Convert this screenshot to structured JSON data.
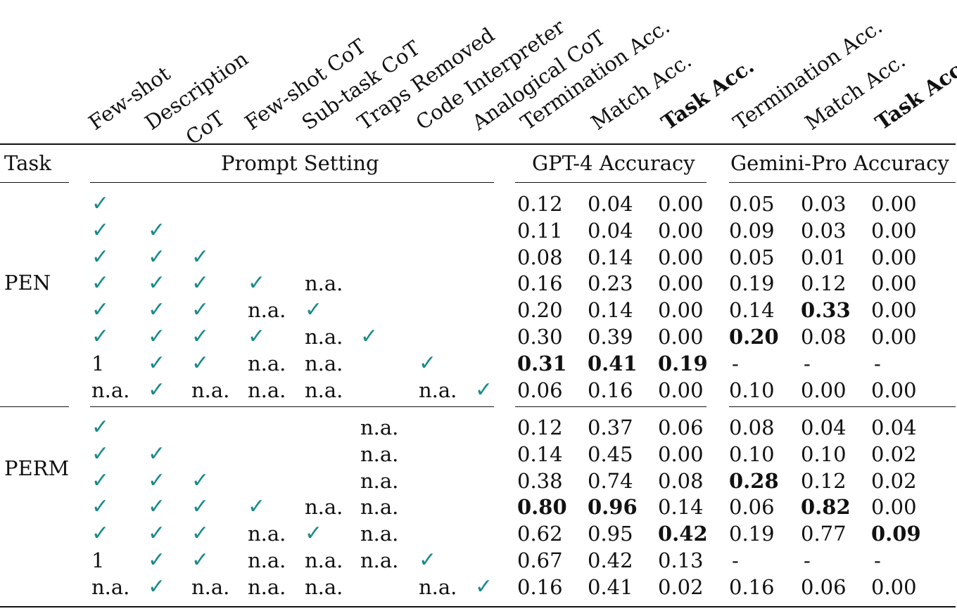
{
  "column_headers": {
    "prompt": [
      "Few-shot",
      "Description",
      "CoT",
      "Few-shot CoT",
      "Sub-task CoT",
      "Traps Removed",
      "Code Interpreter",
      "Analogical CoT"
    ],
    "gpt4": [
      "Termination Acc.",
      "Match Acc.",
      "Task Acc."
    ],
    "gemini": [
      "Termination Acc.",
      "Match Acc.",
      "Task Acc."
    ]
  },
  "group_headers": {
    "task": "Task",
    "prompt_setting": "Prompt Setting",
    "gpt4_accuracy": "GPT-4 Accuracy",
    "gemini_accuracy": "Gemini-Pro Accuracy"
  },
  "check_symbol": "✓",
  "colors": {
    "check": "#1a8a8a",
    "rule": "#111111"
  },
  "tasks": [
    {
      "name": "PEN",
      "rows": [
        {
          "prompt": [
            "✓",
            "",
            "",
            "",
            "",
            "",
            "",
            ""
          ],
          "gpt4": [
            "0.12",
            "0.04",
            "0.00"
          ],
          "gemini": [
            "0.05",
            "0.03",
            "0.00"
          ],
          "bold": []
        },
        {
          "prompt": [
            "✓",
            "✓",
            "",
            "",
            "",
            "",
            "",
            ""
          ],
          "gpt4": [
            "0.11",
            "0.04",
            "0.00"
          ],
          "gemini": [
            "0.09",
            "0.03",
            "0.00"
          ],
          "bold": []
        },
        {
          "prompt": [
            "✓",
            "✓",
            "✓",
            "",
            "",
            "",
            "",
            ""
          ],
          "gpt4": [
            "0.08",
            "0.14",
            "0.00"
          ],
          "gemini": [
            "0.05",
            "0.01",
            "0.00"
          ],
          "bold": []
        },
        {
          "prompt": [
            "✓",
            "✓",
            "✓",
            "✓",
            "n.a.",
            "",
            "",
            ""
          ],
          "gpt4": [
            "0.16",
            "0.23",
            "0.00"
          ],
          "gemini": [
            "0.19",
            "0.12",
            "0.00"
          ],
          "bold": []
        },
        {
          "prompt": [
            "✓",
            "✓",
            "✓",
            "n.a.",
            "✓",
            "",
            "",
            ""
          ],
          "gpt4": [
            "0.20",
            "0.14",
            "0.00"
          ],
          "gemini": [
            "0.14",
            "0.33",
            "0.00"
          ],
          "bold": [
            "gemini.1"
          ]
        },
        {
          "prompt": [
            "✓",
            "✓",
            "✓",
            "✓",
            "n.a.",
            "✓",
            "",
            ""
          ],
          "gpt4": [
            "0.30",
            "0.39",
            "0.00"
          ],
          "gemini": [
            "0.20",
            "0.08",
            "0.00"
          ],
          "bold": [
            "gemini.0"
          ]
        },
        {
          "prompt": [
            "1",
            "✓",
            "✓",
            "n.a.",
            "n.a.",
            "",
            "✓",
            ""
          ],
          "gpt4": [
            "0.31",
            "0.41",
            "0.19"
          ],
          "gemini": [
            "-",
            "-",
            "-"
          ],
          "bold": [
            "gpt4.0",
            "gpt4.1",
            "gpt4.2"
          ]
        },
        {
          "prompt": [
            "n.a.",
            "✓",
            "n.a.",
            "n.a.",
            "n.a.",
            "",
            "n.a.",
            "✓"
          ],
          "gpt4": [
            "0.06",
            "0.16",
            "0.00"
          ],
          "gemini": [
            "0.10",
            "0.00",
            "0.00"
          ],
          "bold": []
        }
      ]
    },
    {
      "name": "PERM",
      "rows": [
        {
          "prompt": [
            "✓",
            "",
            "",
            "",
            "",
            "n.a.",
            "",
            ""
          ],
          "gpt4": [
            "0.12",
            "0.37",
            "0.06"
          ],
          "gemini": [
            "0.08",
            "0.04",
            "0.04"
          ],
          "bold": []
        },
        {
          "prompt": [
            "✓",
            "✓",
            "",
            "",
            "",
            "n.a.",
            "",
            ""
          ],
          "gpt4": [
            "0.14",
            "0.45",
            "0.00"
          ],
          "gemini": [
            "0.10",
            "0.10",
            "0.02"
          ],
          "bold": []
        },
        {
          "prompt": [
            "✓",
            "✓",
            "✓",
            "",
            "",
            "n.a.",
            "",
            ""
          ],
          "gpt4": [
            "0.38",
            "0.74",
            "0.08"
          ],
          "gemini": [
            "0.28",
            "0.12",
            "0.02"
          ],
          "bold": [
            "gemini.0"
          ]
        },
        {
          "prompt": [
            "✓",
            "✓",
            "✓",
            "✓",
            "n.a.",
            "n.a.",
            "",
            ""
          ],
          "gpt4": [
            "0.80",
            "0.96",
            "0.14"
          ],
          "gemini": [
            "0.06",
            "0.82",
            "0.00"
          ],
          "bold": [
            "gpt4.0",
            "gpt4.1",
            "gemini.1"
          ]
        },
        {
          "prompt": [
            "✓",
            "✓",
            "✓",
            "n.a.",
            "✓",
            "n.a.",
            "",
            ""
          ],
          "gpt4": [
            "0.62",
            "0.95",
            "0.42"
          ],
          "gemini": [
            "0.19",
            "0.77",
            "0.09"
          ],
          "bold": [
            "gpt4.2",
            "gemini.2"
          ]
        },
        {
          "prompt": [
            "1",
            "✓",
            "✓",
            "n.a.",
            "n.a.",
            "n.a.",
            "✓",
            ""
          ],
          "gpt4": [
            "0.67",
            "0.42",
            "0.13"
          ],
          "gemini": [
            "-",
            "-",
            "-"
          ],
          "bold": []
        },
        {
          "prompt": [
            "n.a.",
            "✓",
            "n.a.",
            "n.a.",
            "n.a.",
            "",
            "n.a.",
            "✓"
          ],
          "gpt4": [
            "0.16",
            "0.41",
            "0.02"
          ],
          "gemini": [
            "0.16",
            "0.06",
            "0.00"
          ],
          "bold": []
        }
      ]
    }
  ]
}
